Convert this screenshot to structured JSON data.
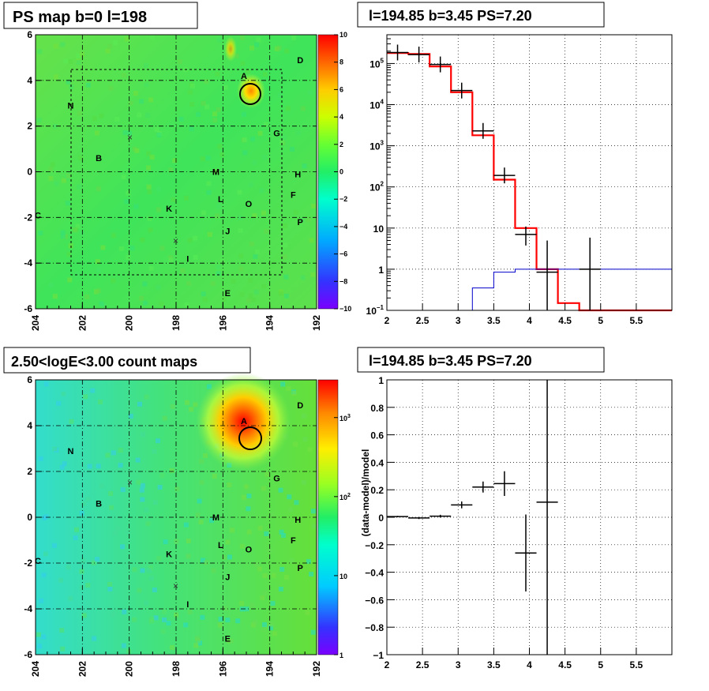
{
  "panels": {
    "ps_map": {
      "title": "PS map b=0 l=198"
    },
    "spectrum": {
      "title": "l=194.85 b=3.45 PS=7.20"
    },
    "count_map": {
      "title": "2.50<logE<3.00 count maps"
    },
    "residual": {
      "title": "l=194.85 b=3.45 PS=7.20"
    }
  },
  "chart_data": [
    {
      "type": "heatmap",
      "title": "PS map b=0 l=198",
      "x_ticks": [
        "204",
        "202",
        "200",
        "198",
        "196",
        "194",
        "192"
      ],
      "y_ticks": [
        "6",
        "4",
        "2",
        "0",
        "-2",
        "-4",
        "-6"
      ],
      "xlim": [
        204,
        192
      ],
      "ylim": [
        -6,
        6
      ],
      "colorbar": {
        "min": -10,
        "max": 10,
        "ticks": [
          "10",
          "8",
          "6",
          "4",
          "2",
          "0",
          "−2",
          "−4",
          "−6",
          "−8",
          "−10"
        ]
      },
      "grid": true,
      "sources": [
        {
          "name": "A",
          "l": 195.1,
          "b": 4.2
        },
        {
          "name": "D",
          "l": 192.7,
          "b": 4.9
        },
        {
          "name": "N",
          "l": 202.5,
          "b": 2.9
        },
        {
          "name": "G",
          "l": 193.7,
          "b": 1.7
        },
        {
          "name": "B",
          "l": 201.3,
          "b": 0.6
        },
        {
          "name": "M",
          "l": 196.3,
          "b": 0.0
        },
        {
          "name": "H",
          "l": 192.8,
          "b": -0.1
        },
        {
          "name": "F",
          "l": 193.0,
          "b": -1.0
        },
        {
          "name": "L",
          "l": 196.1,
          "b": -1.2
        },
        {
          "name": "O",
          "l": 194.9,
          "b": -1.4
        },
        {
          "name": "K",
          "l": 198.3,
          "b": -1.6
        },
        {
          "name": "C",
          "l": 203.9,
          "b": -1.9
        },
        {
          "name": "P",
          "l": 192.7,
          "b": -2.2
        },
        {
          "name": "J",
          "l": 195.8,
          "b": -2.6
        },
        {
          "name": "I",
          "l": 197.5,
          "b": -3.8
        },
        {
          "name": "E",
          "l": 195.8,
          "b": -5.3
        }
      ],
      "circle": {
        "l": 194.85,
        "b": 3.45
      }
    },
    {
      "type": "line",
      "title": "l=194.85 b=3.45 PS=7.20",
      "x_ticks": [
        "2",
        "2.5",
        "3",
        "3.5",
        "4",
        "4.5",
        "5",
        "5.5"
      ],
      "y_ticks": [
        "10^5",
        "10^4",
        "10^3",
        "10^2",
        "10",
        "1",
        "10^-1"
      ],
      "xlim": [
        2,
        6
      ],
      "ylim": [
        0.1,
        500000
      ],
      "y_scale": "log",
      "grid": true,
      "bin_edges": [
        2.0,
        2.3,
        2.6,
        2.9,
        3.2,
        3.5,
        3.8,
        4.1,
        4.4,
        4.7,
        5.0,
        6.0
      ],
      "series": [
        {
          "values": [
            180000,
            170000,
            85000,
            20000,
            1800,
            150,
            10,
            1,
            0.15,
            0.1,
            0.1
          ],
          "color": "#ff0000"
        },
        {
          "values": [
            0.1,
            0.1,
            0.1,
            0.1,
            0.35,
            0.85,
            1.0,
            1.0,
            1.0,
            1.0,
            1.0
          ],
          "color": "#0000cc"
        },
        {
          "x": [
            2.15,
            2.45,
            2.75,
            3.05,
            3.35,
            3.65,
            3.95,
            4.25,
            4.85
          ],
          "y": [
            185000,
            165000,
            95000,
            22000,
            2300,
            190,
            7,
            0.85,
            1.0
          ],
          "color": "#000000"
        }
      ]
    },
    {
      "type": "heatmap",
      "title": "2.50<logE<3.00 count maps",
      "x_ticks": [
        "204",
        "202",
        "200",
        "198",
        "196",
        "194",
        "192"
      ],
      "y_ticks": [
        "6",
        "4",
        "2",
        "0",
        "-2",
        "-4",
        "-6"
      ],
      "xlim": [
        204,
        192
      ],
      "ylim": [
        -6,
        6
      ],
      "grid": true,
      "colorbar": {
        "min": 1,
        "max": 3000,
        "scale": "log",
        "ticks": [
          "10^3",
          "10^2",
          "10",
          "1"
        ]
      },
      "circle": {
        "l": 194.85,
        "b": 3.45
      }
    },
    {
      "type": "scatter",
      "title": "l=194.85 b=3.45 PS=7.20",
      "ylabel": "(data-model)/model",
      "x_ticks": [
        "2",
        "2.5",
        "3",
        "3.5",
        "4",
        "4.5",
        "5",
        "5.5"
      ],
      "y_ticks": [
        "1",
        "0.8",
        "0.6",
        "0.4",
        "0.2",
        "0",
        "−0.2",
        "−0.4",
        "−0.6",
        "−0.8",
        "−1"
      ],
      "xlim": [
        2,
        6
      ],
      "ylim": [
        -1,
        1
      ],
      "grid": true,
      "points": [
        {
          "x": 2.15,
          "y": 0.005,
          "xerr": 0.15,
          "yerr": 0.005
        },
        {
          "x": 2.45,
          "y": -0.005,
          "xerr": 0.15,
          "yerr": 0.008
        },
        {
          "x": 2.75,
          "y": 0.008,
          "xerr": 0.15,
          "yerr": 0.01
        },
        {
          "x": 3.05,
          "y": 0.09,
          "xerr": 0.15,
          "yerr": 0.025
        },
        {
          "x": 3.35,
          "y": 0.22,
          "xerr": 0.15,
          "yerr": 0.04
        },
        {
          "x": 3.65,
          "y": 0.245,
          "xerr": 0.15,
          "yerr": 0.09
        },
        {
          "x": 3.95,
          "y": -0.26,
          "xerr": 0.15,
          "yerr": 0.28
        },
        {
          "x": 4.25,
          "y": 0.11,
          "xerr": 0.15,
          "yerr": 1.2
        }
      ]
    }
  ]
}
